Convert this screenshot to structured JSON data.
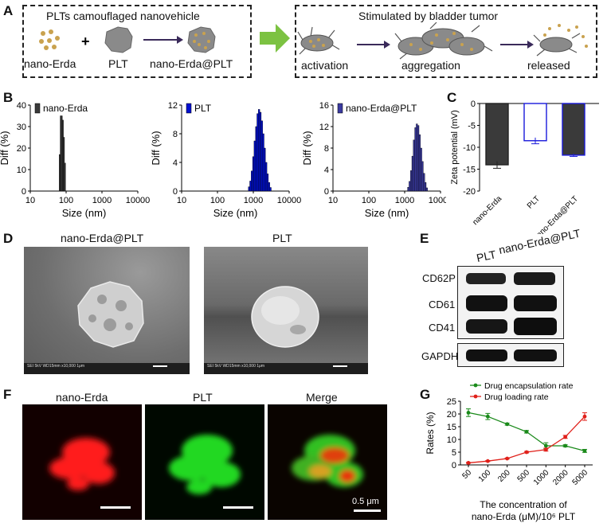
{
  "panels": {
    "A": "A",
    "B": "B",
    "C": "C",
    "D": "D",
    "E": "E",
    "F": "F",
    "G": "G"
  },
  "panelA": {
    "left_title": "PLTs camouflaged nanovehicle",
    "nano_erda": "nano-Erda",
    "plus": "+",
    "plt": "PLT",
    "nano_erda_plt": "nano-Erda@PLT",
    "right_title": "Stimulated by bladder tumor",
    "activation": "activation",
    "aggregation": "aggregation",
    "released": "released",
    "colors": {
      "arrow": "#3a2a5a",
      "big_arrow": "#7cc242",
      "dots": "#c9a24f",
      "plt": "#8a8a8a"
    }
  },
  "panelB": {
    "xlabel": "Size (nm)",
    "ylabel": "Diff (%)",
    "xticks": [
      "10",
      "100",
      "1000",
      "10000"
    ],
    "plots": [
      {
        "legend": "nano-Erda",
        "color": "#3a3a3a",
        "yticks": [
          "0",
          "10",
          "20",
          "30",
          "40"
        ],
        "ymax": 40,
        "bins_log10": [
          1.82,
          1.85,
          1.88,
          1.91,
          1.94,
          1.97
        ],
        "values": [
          17,
          35,
          35,
          33,
          25,
          13
        ]
      },
      {
        "legend": "PLT",
        "color": "#0010d0",
        "yticks": [
          "0",
          "4",
          "8",
          "12"
        ],
        "ymax": 12,
        "bins_log10": [
          2.88,
          2.92,
          2.96,
          3.0,
          3.04,
          3.08,
          3.12,
          3.16,
          3.2,
          3.24,
          3.28,
          3.32,
          3.36,
          3.4,
          3.44,
          3.48
        ],
        "values": [
          0.6,
          1.4,
          2.8,
          4.8,
          7,
          9,
          10.8,
          11.4,
          11,
          9.8,
          8,
          6,
          4,
          2.4,
          1.2,
          0.5
        ]
      },
      {
        "legend": "nano-Erda@PLT",
        "color": "#3a3aa0",
        "yticks": [
          "0",
          "4",
          "8",
          "12",
          "16"
        ],
        "ymax": 16,
        "bins_log10": [
          3.1,
          3.14,
          3.18,
          3.22,
          3.26,
          3.3,
          3.34,
          3.38,
          3.42,
          3.46,
          3.5,
          3.54,
          3.58,
          3.62
        ],
        "values": [
          0.7,
          1.8,
          3.8,
          6.5,
          9.5,
          11.8,
          12.5,
          12.2,
          10.5,
          8,
          5.5,
          3.3,
          1.6,
          0.6
        ]
      }
    ]
  },
  "chart_data": [
    {
      "type": "bar",
      "title": "",
      "ylabel": "Zeta potential (mV)",
      "categories": [
        "nano-Erda",
        "PLT",
        "nano-Erda@PLT"
      ],
      "values": [
        -14,
        -8.5,
        -11.8
      ],
      "errors": [
        0.8,
        0.7,
        0.3
      ],
      "ylim": [
        -20,
        0
      ],
      "yticks": [
        "0",
        "-5",
        "-10",
        "-15",
        "-20"
      ],
      "colors": [
        "#3a3a3a",
        "#ffffff",
        "#3a3a3a"
      ],
      "edge": [
        "#222",
        "#1a1adb",
        "#1a1adb"
      ]
    },
    {
      "type": "line",
      "title": "",
      "xlabel": "The concentration of nano-Erda (μM)/10⁶ PLT",
      "ylabel": "Rates (%)",
      "categories": [
        "50",
        "100",
        "200",
        "500",
        "1000",
        "2000",
        "5000"
      ],
      "ylim": [
        0,
        25
      ],
      "yticks": [
        "0",
        "5",
        "10",
        "15",
        "20",
        "25"
      ],
      "series": [
        {
          "name": "Drug encapsulation rate",
          "color": "#1a8a1a",
          "values": [
            20.5,
            19,
            16,
            13,
            7.5,
            7.5,
            5.5
          ],
          "errors": [
            1.5,
            1.2,
            0.4,
            0.5,
            1.2,
            0.4,
            0.6
          ]
        },
        {
          "name": "Drug loading rate",
          "color": "#e0201a",
          "values": [
            0.8,
            1.5,
            2.5,
            5,
            6,
            11,
            19
          ],
          "errors": [
            0.2,
            0.2,
            0.2,
            0.3,
            0.6,
            0.6,
            1.5
          ]
        }
      ]
    }
  ],
  "panelD": {
    "left_title": "nano-Erda@PLT",
    "right_title": "PLT",
    "sem_left": "SEI   5kV      WD15mm                       x10,000   1μm",
    "sem_right": "SEI   5kV      WD15mm                       x10,000   1μm"
  },
  "panelE": {
    "col1": "PLT",
    "col2": "nano-Erda@PLT",
    "rows": [
      "CD62P",
      "CD61",
      "CD41"
    ],
    "loading": "GAPDH"
  },
  "panelF": {
    "t1": "nano-Erda",
    "t2": "PLT",
    "t3": "Merge",
    "scale": "0.5 μm"
  }
}
